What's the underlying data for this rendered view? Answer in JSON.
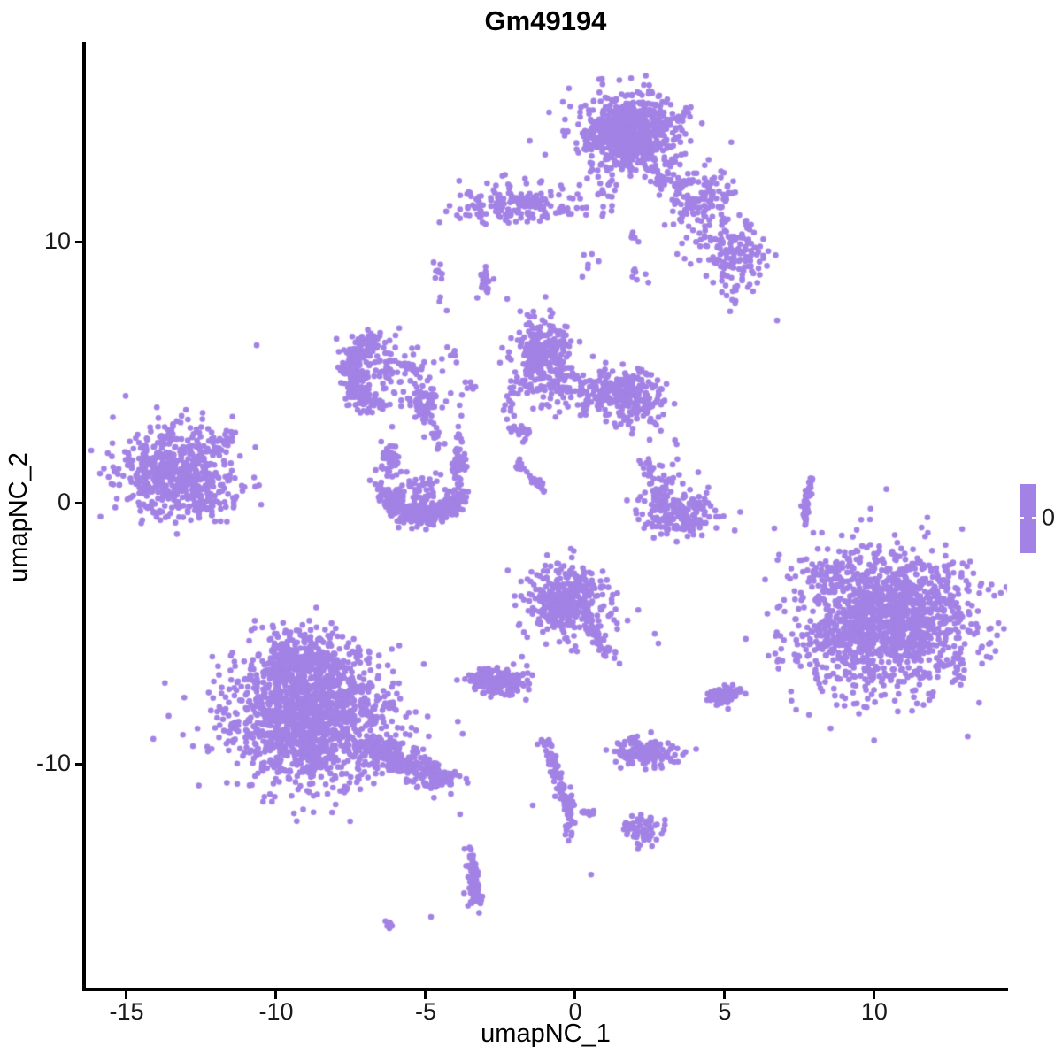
{
  "chart_data": {
    "type": "scatter",
    "title": "Gm49194",
    "xlabel": "umapNC_1",
    "ylabel": "umapNC_2",
    "xlim": [
      -16.42,
      14.44
    ],
    "ylim": [
      -18.64,
      17.56
    ],
    "x_ticks": [
      -15,
      -10,
      -5,
      0,
      5,
      10
    ],
    "y_ticks": [
      -10,
      0,
      10
    ],
    "grid": false,
    "legend": {
      "position": "right",
      "label": "0",
      "bar_color": "#A382E5"
    },
    "style": {
      "point_color": "#A382E5",
      "point_radius": 3.3,
      "axis_color": "#000000",
      "text_color": "#1a1a1a",
      "background": "#ffffff"
    },
    "clusters": [
      {
        "name": "top-main-blob",
        "kind": "blob",
        "x": 1.83,
        "y": 14.17,
        "sx": 0.78,
        "sy": 0.72,
        "n": 680
      },
      {
        "name": "top-main-fringe",
        "kind": "blob",
        "x": 1.83,
        "y": 14.17,
        "sx": 1.25,
        "sy": 1.1,
        "n": 70
      },
      {
        "name": "top-right-arm",
        "kind": "line",
        "x1": 2.9,
        "y1": 12.81,
        "x2": 4.38,
        "y2": 10.78,
        "w": 0.3,
        "n": 80
      },
      {
        "name": "top-arm-blob",
        "kind": "blob",
        "x": 4.56,
        "y": 11.9,
        "sx": 0.42,
        "sy": 0.5,
        "n": 55
      },
      {
        "name": "top-right-blob",
        "kind": "blob",
        "x": 5.41,
        "y": 9.42,
        "sx": 0.5,
        "sy": 0.72,
        "n": 120
      },
      {
        "name": "top-right-tail",
        "kind": "line",
        "x1": 5.15,
        "y1": 8.41,
        "x2": 5.33,
        "y2": 7.56,
        "w": 0.12,
        "n": 8
      },
      {
        "name": "arm-mid-scatter",
        "kind": "blob",
        "x": 4.2,
        "y": 10.4,
        "sx": 0.55,
        "sy": 0.5,
        "n": 40
      },
      {
        "name": "top-bridge-down",
        "kind": "line",
        "x1": 1.18,
        "y1": 12.31,
        "x2": 1.04,
        "y2": 10.61,
        "w": 0.15,
        "n": 13
      },
      {
        "name": "top-bridge-dots",
        "kind": "line",
        "x1": 1.78,
        "y1": 10.51,
        "x2": 2.01,
        "y2": 10.03,
        "w": 0.08,
        "n": 6
      },
      {
        "name": "upper-mid-trail-a",
        "kind": "line",
        "x1": 0.53,
        "y1": 9.36,
        "x2": -0.06,
        "y2": 8.07,
        "w": 0.18,
        "n": 6
      },
      {
        "name": "upper-mid-trail-b",
        "kind": "line",
        "x1": 1.48,
        "y1": 9.08,
        "x2": 2.51,
        "y2": 8.47,
        "w": 0.18,
        "n": 7
      },
      {
        "name": "topleft-elongated",
        "kind": "blob",
        "x": -2.01,
        "y": 11.46,
        "sx": 0.95,
        "sy": 0.4,
        "n": 170
      },
      {
        "name": "topleft-outliers",
        "kind": "line",
        "x1": -3.64,
        "y1": 11.19,
        "x2": -3.11,
        "y2": 10.78,
        "w": 0.2,
        "n": 6
      },
      {
        "name": "topleft-bridge",
        "kind": "line",
        "x1": -0.59,
        "y1": 11.29,
        "x2": 0.36,
        "y2": 11.05,
        "w": 0.15,
        "n": 8
      },
      {
        "name": "tiny-spot",
        "kind": "blob",
        "x": -3.02,
        "y": 8.54,
        "sx": 0.12,
        "sy": 0.26,
        "n": 20
      },
      {
        "name": "midleft-crescent",
        "kind": "arc",
        "x": -6.36,
        "y": 5.02,
        "rx": 1.15,
        "ry": 1.25,
        "a0": 100,
        "a1": 260,
        "w": 0.18,
        "n": 250
      },
      {
        "name": "midleft-scatter",
        "kind": "blob",
        "x": -6.2,
        "y": 5.0,
        "sx": 0.85,
        "sy": 0.7,
        "n": 110
      },
      {
        "name": "midleft-dash",
        "kind": "blob",
        "x": -5.68,
        "y": 5.19,
        "sx": 0.22,
        "sy": 0.1,
        "n": 14
      },
      {
        "name": "star-blob",
        "kind": "blob",
        "x": -5.03,
        "y": 3.8,
        "sx": 0.27,
        "sy": 0.24,
        "n": 55
      },
      {
        "name": "star-chain-down",
        "kind": "line",
        "x1": -4.97,
        "y1": 3.39,
        "x2": -4.53,
        "y2": 2.14,
        "w": 0.1,
        "n": 20
      },
      {
        "name": "vertical-chain-top",
        "kind": "line",
        "x1": -4.62,
        "y1": 9.15,
        "x2": -4.44,
        "y2": 7.32,
        "w": 0.07,
        "n": 13
      },
      {
        "name": "vertical-chain-low",
        "kind": "line",
        "x1": -4.2,
        "y1": 6.1,
        "x2": -3.46,
        "y2": 4.41,
        "w": 0.13,
        "n": 10
      },
      {
        "name": "chain-to-u",
        "kind": "line",
        "x1": -3.76,
        "y1": 4.51,
        "x2": -3.88,
        "y2": 2.2,
        "w": 0.1,
        "n": 10
      },
      {
        "name": "middle-left-blob",
        "kind": "blob",
        "x": -1.09,
        "y": 5.59,
        "sx": 0.5,
        "sy": 0.75,
        "n": 300
      },
      {
        "name": "middle-right-blob",
        "kind": "blob",
        "x": 1.72,
        "y": 4.07,
        "sx": 0.75,
        "sy": 0.5,
        "n": 240
      },
      {
        "name": "middle-bridge",
        "kind": "blob",
        "x": 0.3,
        "y": 4.3,
        "sx": 0.75,
        "sy": 0.55,
        "n": 90
      },
      {
        "name": "middle-left-arc",
        "kind": "arc",
        "x": -1.24,
        "y": 3.66,
        "rx": 1.05,
        "ry": 1.2,
        "a0": 150,
        "a1": 250,
        "w": 0.18,
        "n": 30
      },
      {
        "name": "middle-streak",
        "kind": "line",
        "x1": -1.98,
        "y1": 1.53,
        "x2": -1.09,
        "y2": 0.51,
        "w": 0.08,
        "n": 28
      },
      {
        "name": "middle-right-dots",
        "kind": "line",
        "x1": 2.51,
        "y1": 3.32,
        "x2": 3.02,
        "y2": 2.14,
        "w": 0.25,
        "n": 7
      },
      {
        "name": "left-cluster",
        "kind": "blob",
        "x": -13.43,
        "y": 1.19,
        "sx": 1.0,
        "sy": 0.9,
        "n": 560
      },
      {
        "name": "left-cluster-arm",
        "kind": "line",
        "x1": -12.07,
        "y1": 2.03,
        "x2": -11.33,
        "y2": 2.75,
        "w": 0.15,
        "n": 22
      },
      {
        "name": "left-cluster-below",
        "kind": "blob",
        "x": -12.55,
        "y": -0.1,
        "sx": 0.65,
        "sy": 0.3,
        "n": 45
      },
      {
        "name": "u-crescent",
        "kind": "arc",
        "x": -5.12,
        "y": 0.78,
        "rx": 1.24,
        "ry": 1.3,
        "a0": 195,
        "a1": 345,
        "w": 0.2,
        "n": 320
      },
      {
        "name": "u-left-prong",
        "kind": "blob",
        "x": -6.21,
        "y": 1.63,
        "sx": 0.18,
        "sy": 0.3,
        "n": 40
      },
      {
        "name": "u-right-prong",
        "kind": "blob",
        "x": -3.88,
        "y": 1.53,
        "sx": 0.15,
        "sy": 0.3,
        "n": 40
      },
      {
        "name": "u-interior",
        "kind": "blob",
        "x": -5.1,
        "y": 0.5,
        "sx": 0.6,
        "sy": 0.45,
        "n": 60
      },
      {
        "name": "right-crescent-blob",
        "kind": "blob",
        "x": 3.55,
        "y": -0.58,
        "sx": 0.62,
        "sy": 0.42,
        "n": 170
      },
      {
        "name": "right-crescent-tail",
        "kind": "line",
        "x1": 2.46,
        "y1": 1.56,
        "x2": 2.9,
        "y2": -0.14,
        "w": 0.18,
        "n": 45
      },
      {
        "name": "right-crescent-scatter",
        "kind": "blob",
        "x": 3.3,
        "y": 0.4,
        "sx": 0.5,
        "sy": 0.6,
        "n": 40
      },
      {
        "name": "thin-vertical-line",
        "kind": "line",
        "x1": 7.87,
        "y1": 1.02,
        "x2": 7.63,
        "y2": -0.95,
        "w": 0.045,
        "n": 45
      },
      {
        "name": "big-right-cluster",
        "kind": "blob",
        "x": 10.3,
        "y": -4.54,
        "sx": 1.5,
        "sy": 1.32,
        "n": 1450
      },
      {
        "name": "big-right-west-outliers",
        "kind": "blob",
        "x": 8.1,
        "y": -2.6,
        "sx": 0.35,
        "sy": 0.4,
        "n": 25
      },
      {
        "name": "center-cluster",
        "kind": "blob",
        "x": -0.27,
        "y": -3.73,
        "sx": 0.72,
        "sy": 0.68,
        "n": 380
      },
      {
        "name": "center-tail",
        "kind": "line",
        "x1": 0.53,
        "y1": -4.68,
        "x2": 1.24,
        "y2": -5.9,
        "w": 0.13,
        "n": 40
      },
      {
        "name": "small-center-left",
        "kind": "blob",
        "x": -2.49,
        "y": -6.85,
        "sx": 0.5,
        "sy": 0.28,
        "n": 140
      },
      {
        "name": "small-right",
        "kind": "blob",
        "x": 4.94,
        "y": -7.39,
        "sx": 0.28,
        "sy": 0.2,
        "n": 70
      },
      {
        "name": "bottomleft-main",
        "kind": "blob",
        "x": -8.82,
        "y": -8.27,
        "sx": 1.35,
        "sy": 1.25,
        "n": 1350
      },
      {
        "name": "bottomleft-top-lobe",
        "kind": "blob",
        "x": -9.11,
        "y": -6.07,
        "sx": 0.8,
        "sy": 0.55,
        "n": 280
      },
      {
        "name": "bottomleft-arm",
        "kind": "line",
        "x1": -6.95,
        "y1": -9.39,
        "x2": -4.29,
        "y2": -10.64,
        "w": 0.28,
        "n": 270
      },
      {
        "name": "bottomleft-fringe",
        "kind": "blob",
        "x": -8.82,
        "y": -8.27,
        "sx": 1.9,
        "sy": 1.7,
        "n": 90
      },
      {
        "name": "bottom-chain",
        "kind": "line",
        "x1": -0.89,
        "y1": -9.49,
        "x2": -0.21,
        "y2": -11.76,
        "w": 0.1,
        "n": 65
      },
      {
        "name": "bottom-chain-top",
        "kind": "blob",
        "x": -0.98,
        "y": -9.25,
        "sx": 0.2,
        "sy": 0.1,
        "n": 12
      },
      {
        "name": "bottom-chain-blob",
        "kind": "blob",
        "x": -0.21,
        "y": -11.9,
        "sx": 0.1,
        "sy": 0.45,
        "n": 45
      },
      {
        "name": "bottom-dashes",
        "kind": "line",
        "x1": 0.15,
        "y1": -11.76,
        "x2": 0.8,
        "y2": -11.93,
        "w": 0.06,
        "n": 8
      },
      {
        "name": "bottom-ellipse",
        "kind": "blob",
        "x": 2.34,
        "y": -9.59,
        "sx": 0.55,
        "sy": 0.25,
        "n": 150
      },
      {
        "name": "bottom-ellipse-nub",
        "kind": "blob",
        "x": 2.01,
        "y": -9.05,
        "sx": 0.1,
        "sy": 0.12,
        "n": 8
      },
      {
        "name": "bottom-small-blob",
        "kind": "blob",
        "x": 2.28,
        "y": -12.54,
        "sx": 0.33,
        "sy": 0.26,
        "n": 65
      },
      {
        "name": "bottom-small-tail",
        "kind": "line",
        "x1": 1.57,
        "y1": -12.31,
        "x2": 1.86,
        "y2": -12.44,
        "w": 0.06,
        "n": 6
      },
      {
        "name": "bottom-streak",
        "kind": "line",
        "x1": -3.52,
        "y1": -13.29,
        "x2": -3.34,
        "y2": -15.22,
        "w": 0.07,
        "n": 75
      },
      {
        "name": "bottom-streak-bulge",
        "kind": "blob",
        "x": -3.37,
        "y": -14.95,
        "sx": 0.13,
        "sy": 0.28,
        "n": 25
      },
      {
        "name": "bottom-left-dash",
        "kind": "line",
        "x1": -6.33,
        "y1": -16.07,
        "x2": -5.92,
        "y2": -16.27,
        "w": 0.08,
        "n": 8
      }
    ],
    "singles": [
      [
        6.75,
        6.98
      ],
      [
        -10.65,
        6.03
      ],
      [
        2.66,
        -5.02
      ],
      [
        2.78,
        -5.39
      ],
      [
        -1.78,
        -5.9
      ],
      [
        4.41,
        -7.56
      ],
      [
        -1.42,
        -11.59
      ],
      [
        -3.85,
        -11.93
      ],
      [
        -4.82,
        -15.86
      ],
      [
        0.53,
        -14.24
      ]
    ]
  }
}
